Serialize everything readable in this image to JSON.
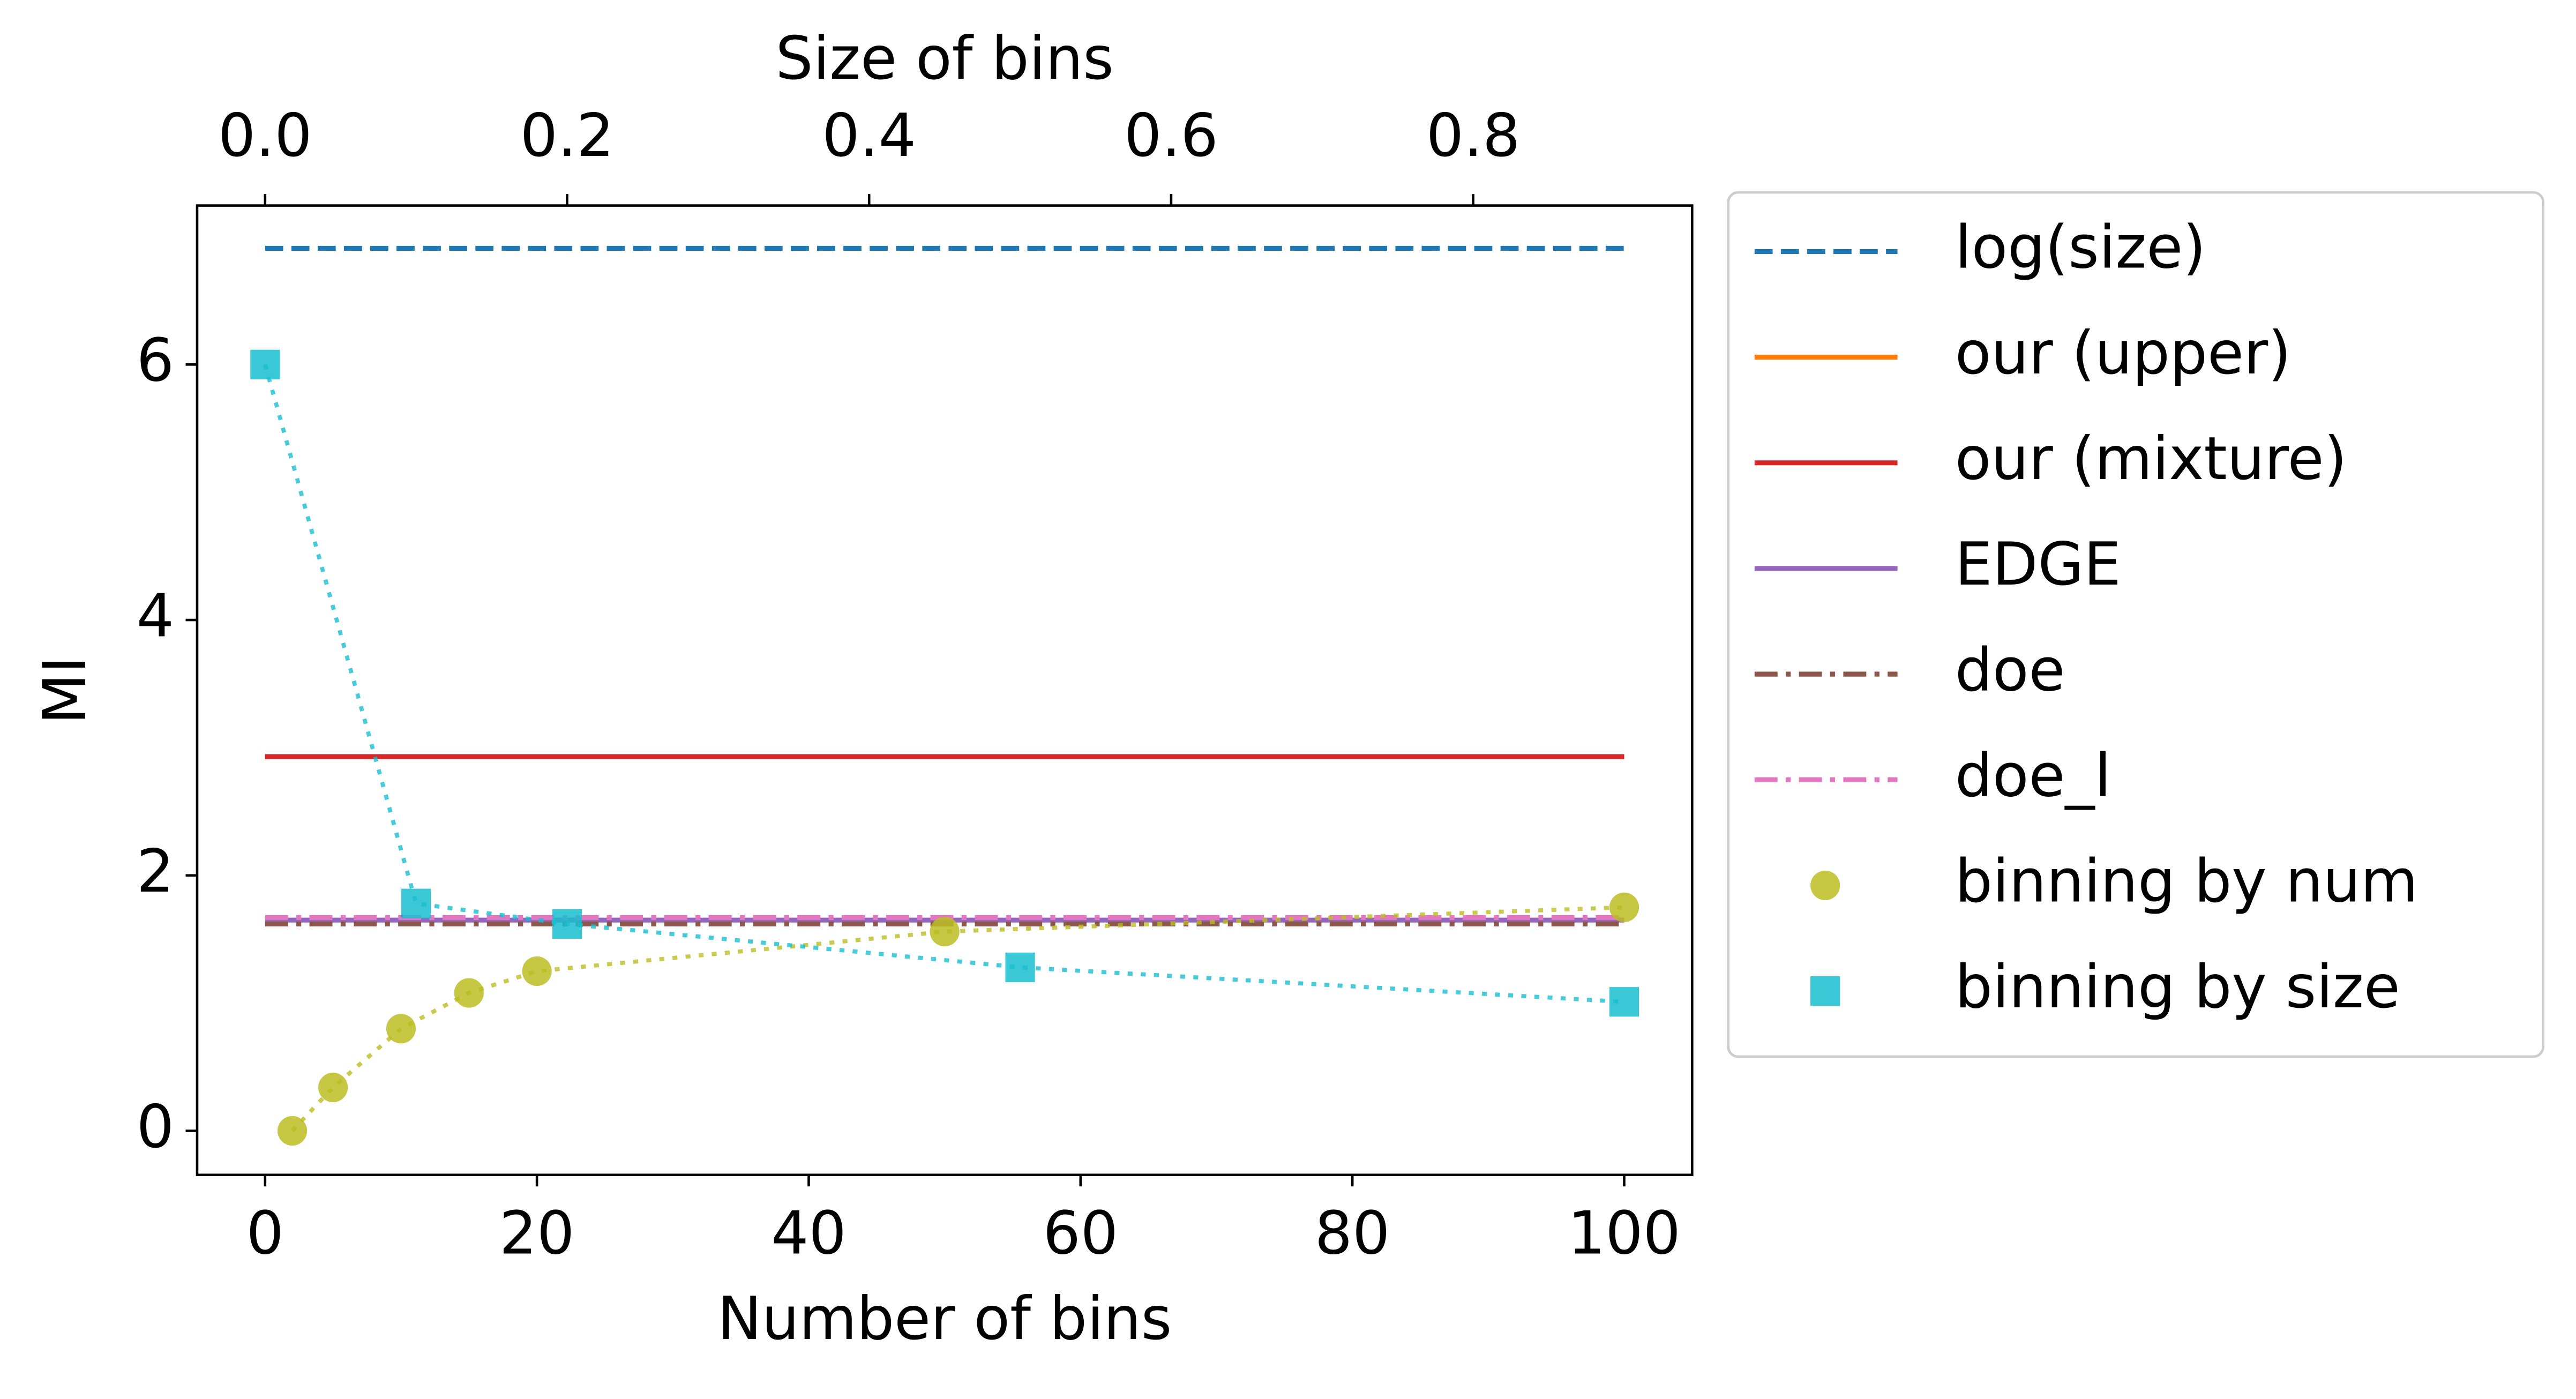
{
  "chart_data": {
    "type": "line",
    "xlabel": "Number of bins",
    "x2label": "Size of bins",
    "ylabel": "MI",
    "xlim": [
      -5,
      105
    ],
    "xticks": [
      0,
      20,
      40,
      60,
      80,
      100
    ],
    "x2lim": [
      -0.045,
      0.945
    ],
    "x2ticks": [
      {
        "value": 0,
        "label": "0.0"
      },
      0.2,
      0.4,
      0.6,
      0.8
    ],
    "ylim": [
      -0.345,
      7.245
    ],
    "yticks": [
      0,
      2,
      4,
      6
    ],
    "legend": "outside-right",
    "series": [
      {
        "name": "log(size)",
        "color": "#1f77b4",
        "linestyle": "dashed",
        "x": [
          0,
          100
        ],
        "values": [
          6.91,
          6.91
        ]
      },
      {
        "name": "our (upper)",
        "color": "#ff7f0e",
        "linestyle": "solid",
        "x": [
          0,
          100
        ],
        "values": [
          2.93,
          2.93
        ]
      },
      {
        "name": "our (mixture)",
        "color": "#d62728",
        "linestyle": "solid",
        "x": [
          0,
          100
        ],
        "values": [
          2.93,
          2.93
        ]
      },
      {
        "name": "EDGE",
        "color": "#9467bd",
        "linestyle": "solid",
        "x": [
          0,
          100
        ],
        "values": [
          1.65,
          1.65
        ]
      },
      {
        "name": "doe",
        "color": "#8c564b",
        "linestyle": "dashdot",
        "x": [
          0,
          100
        ],
        "values": [
          1.62,
          1.62
        ]
      },
      {
        "name": "doe_l",
        "color": "#e377c2",
        "linestyle": "dashdot",
        "x": [
          0,
          100
        ],
        "values": [
          1.67,
          1.67
        ]
      },
      {
        "name": "binning by num",
        "color": "#bcbd22",
        "linestyle": "dotted",
        "marker": "circle",
        "x": [
          2,
          5,
          10,
          15,
          20,
          50,
          100
        ],
        "values": [
          0,
          0.34,
          0.8,
          1.08,
          1.25,
          1.56,
          1.75
        ]
      },
      {
        "name": "binning by size",
        "color": "#17becf",
        "linestyle": "dotted",
        "marker": "square",
        "axis": "x2",
        "x": [
          0,
          0.1,
          0.2,
          0.5,
          0.9
        ],
        "values": [
          6.0,
          1.78,
          1.62,
          1.28,
          1.01
        ]
      }
    ]
  }
}
